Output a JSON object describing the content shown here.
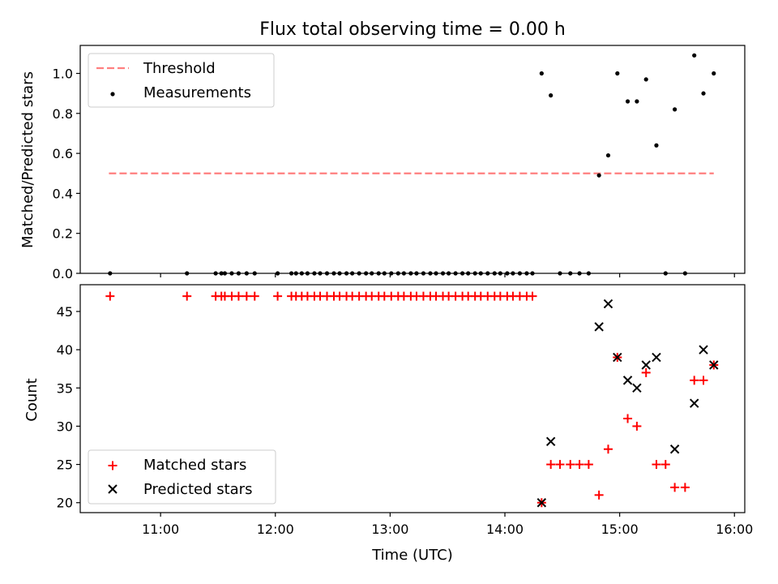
{
  "colors": {
    "threshold": "#ff7f7f",
    "measurement": "#000000",
    "matched": "#ff0000",
    "predicted": "#000000"
  },
  "chart_data": [
    {
      "type": "scatter",
      "title": "Flux total observing time = 0.00 h",
      "xlabel": "",
      "ylabel": "Matched/Predicted stars",
      "xlim": [
        10.3,
        16.09
      ],
      "ylim": [
        0,
        1.14
      ],
      "yticks": [
        0.0,
        0.2,
        0.4,
        0.6,
        0.8,
        1.0
      ],
      "ytick_labels": [
        "0.0",
        "0.2",
        "0.4",
        "0.6",
        "0.8",
        "1.0"
      ],
      "legend": {
        "position": "top-left",
        "entries": [
          "Threshold",
          "Measurements"
        ]
      },
      "series": [
        {
          "name": "Threshold",
          "kind": "line",
          "style": "dashed",
          "x": [
            10.55,
            15.82
          ],
          "y": [
            0.5,
            0.5
          ]
        },
        {
          "name": "Measurements",
          "kind": "points",
          "x": [
            10.56,
            11.23,
            11.48,
            11.53,
            11.56,
            11.62,
            11.68,
            11.75,
            11.82,
            12.02,
            12.14,
            12.18,
            12.23,
            12.28,
            12.34,
            12.39,
            12.45,
            12.51,
            12.56,
            12.62,
            12.67,
            12.73,
            12.79,
            12.84,
            12.9,
            12.95,
            13.01,
            13.07,
            13.12,
            13.18,
            13.23,
            13.29,
            13.35,
            13.4,
            13.46,
            13.51,
            13.57,
            13.63,
            13.68,
            13.74,
            13.79,
            13.85,
            13.91,
            13.96,
            14.02,
            14.07,
            14.13,
            14.19,
            14.24,
            14.32,
            14.4,
            14.48,
            14.57,
            14.65,
            14.73,
            14.82,
            14.9,
            14.98,
            15.07,
            15.15,
            15.23,
            15.32,
            15.4,
            15.48,
            15.57,
            15.65,
            15.73,
            15.82
          ],
          "y": [
            0,
            0,
            0,
            0,
            0,
            0,
            0,
            0,
            0,
            0,
            0,
            0,
            0,
            0,
            0,
            0,
            0,
            0,
            0,
            0,
            0,
            0,
            0,
            0,
            0,
            0,
            0,
            0,
            0,
            0,
            0,
            0,
            0,
            0,
            0,
            0,
            0,
            0,
            0,
            0,
            0,
            0,
            0,
            0,
            0,
            0,
            0,
            0,
            0,
            1.0,
            0.89,
            0,
            0,
            0,
            0,
            0.49,
            0.59,
            1.0,
            0.86,
            0.86,
            0.97,
            0.64,
            0,
            0.82,
            0,
            1.09,
            0.9,
            1.0
          ]
        }
      ]
    },
    {
      "type": "scatter",
      "title": "",
      "xlabel": "Time (UTC)",
      "ylabel": "Count",
      "xlim": [
        10.3,
        16.09
      ],
      "ylim": [
        18.7,
        48.5
      ],
      "yticks": [
        20,
        25,
        30,
        35,
        40,
        45
      ],
      "ytick_labels": [
        "20",
        "25",
        "30",
        "35",
        "40",
        "45"
      ],
      "xticks": [
        11,
        12,
        13,
        14,
        15,
        16
      ],
      "xtick_labels": [
        "11:00",
        "12:00",
        "13:00",
        "14:00",
        "15:00",
        "16:00"
      ],
      "legend": {
        "position": "bottom-left",
        "entries": [
          "Matched stars",
          "Predicted stars"
        ]
      },
      "series": [
        {
          "name": "Matched stars",
          "marker": "plus",
          "x": [
            10.56,
            11.23,
            11.48,
            11.53,
            11.56,
            11.62,
            11.68,
            11.75,
            11.82,
            12.02,
            12.14,
            12.18,
            12.23,
            12.28,
            12.34,
            12.39,
            12.45,
            12.51,
            12.56,
            12.62,
            12.67,
            12.73,
            12.79,
            12.84,
            12.9,
            12.95,
            13.01,
            13.07,
            13.12,
            13.18,
            13.23,
            13.29,
            13.35,
            13.4,
            13.46,
            13.51,
            13.57,
            13.63,
            13.68,
            13.74,
            13.79,
            13.85,
            13.91,
            13.96,
            14.02,
            14.07,
            14.13,
            14.19,
            14.24,
            14.32,
            14.4,
            14.48,
            14.57,
            14.65,
            14.73,
            14.82,
            14.9,
            14.98,
            15.07,
            15.15,
            15.23,
            15.32,
            15.4,
            15.48,
            15.57,
            15.65,
            15.73,
            15.82
          ],
          "y": [
            47,
            47,
            47,
            47,
            47,
            47,
            47,
            47,
            47,
            47,
            47,
            47,
            47,
            47,
            47,
            47,
            47,
            47,
            47,
            47,
            47,
            47,
            47,
            47,
            47,
            47,
            47,
            47,
            47,
            47,
            47,
            47,
            47,
            47,
            47,
            47,
            47,
            47,
            47,
            47,
            47,
            47,
            47,
            47,
            47,
            47,
            47,
            47,
            47,
            20,
            25,
            25,
            25,
            25,
            25,
            21,
            27,
            39,
            31,
            30,
            37,
            25,
            25,
            22,
            22,
            36,
            36,
            38
          ]
        },
        {
          "name": "Predicted stars",
          "marker": "x",
          "x": [
            14.32,
            14.4,
            14.82,
            14.9,
            14.98,
            15.07,
            15.15,
            15.23,
            15.32,
            15.48,
            15.65,
            15.73,
            15.82
          ],
          "y": [
            20,
            28,
            43,
            46,
            39,
            36,
            35,
            38,
            39,
            27,
            33,
            40,
            38
          ]
        }
      ]
    }
  ]
}
